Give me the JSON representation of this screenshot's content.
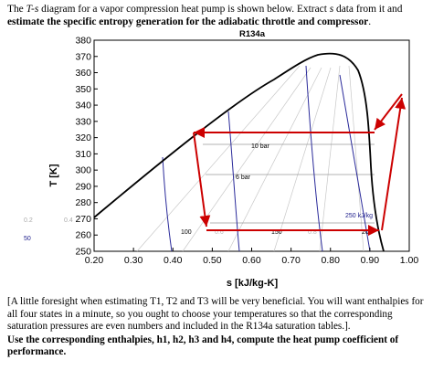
{
  "question": {
    "intro_before": "The ",
    "intro_italic": "T-s",
    "intro_mid": " diagram for a vapor compression heat pump is shown below.  Extract ",
    "intro_s": "s",
    "intro_after": " data from it and ",
    "intro_bold": "estimate the specific entropy generation for the adiabatic throttle and compressor",
    "intro_end": ".",
    "foresight": "[A little foresight when estimating T1, T2 and T3 will be very beneficial.  You will want enthalpies for all four states in a minute, so you ought to choose your temperatures so that the corresponding saturation pressures are even numbers and included in the R134a saturation tables.].",
    "final_bold": "Use the corresponding enthalpies, h1, h2, h3 and h4, compute the heat pump coefficient of performance."
  },
  "chart_data": {
    "type": "line",
    "title": "R134a",
    "xlabel": "s [kJ/kg-K]",
    "ylabel": "T [K]",
    "xlim": [
      0.2,
      1.0
    ],
    "ylim": [
      250,
      380
    ],
    "xticks": [
      "0.20",
      "0.30",
      "0.40",
      "0.50",
      "0.60",
      "0.70",
      "0.80",
      "0.90",
      "1.00"
    ],
    "yticks": [
      "250",
      "260",
      "270",
      "280",
      "290",
      "300",
      "310",
      "320",
      "330",
      "340",
      "350",
      "360",
      "370",
      "380"
    ],
    "grid": false,
    "saturation_dome": {
      "liquid_line": [
        [
          0.2,
          266
        ],
        [
          0.3,
          289
        ],
        [
          0.4,
          311
        ],
        [
          0.47,
          326
        ],
        [
          0.55,
          342
        ],
        [
          0.62,
          356
        ],
        [
          0.68,
          367
        ],
        [
          0.74,
          373
        ],
        [
          0.78,
          374
        ]
      ],
      "vapor_line": [
        [
          0.78,
          374
        ],
        [
          0.82,
          373
        ],
        [
          0.86,
          370
        ],
        [
          0.89,
          362
        ],
        [
          0.905,
          345
        ],
        [
          0.915,
          320
        ],
        [
          0.93,
          290
        ],
        [
          0.945,
          262
        ],
        [
          0.955,
          250
        ]
      ]
    },
    "isobars": [
      {
        "label": "10 bar",
        "T_sat": 313.1
      },
      {
        "label": "6 bar",
        "T_sat": 295
      }
    ],
    "isenthalps": [
      {
        "label": "100",
        "s_at_sat_bottom": 0.4
      },
      {
        "label": "150",
        "s_at_sat_bottom": 0.6
      },
      {
        "label": "200",
        "s_at_sat_bottom": 0.82
      },
      {
        "label": "250 kJ/kg",
        "s_at_sat_bottom": 0.94
      }
    ],
    "quality_labels": [
      "0.2",
      "0.4",
      "0.6",
      "0.8"
    ],
    "left_margin_label": "50",
    "cycle": {
      "color": "#cc0000",
      "path": [
        {
          "s": 0.935,
          "T": 326
        },
        {
          "s": 0.93,
          "T": 326
        },
        {
          "s": 0.46,
          "T": 326
        },
        {
          "s": 0.47,
          "T": 261
        },
        {
          "s": 0.92,
          "T": 261
        },
        {
          "s": 0.955,
          "T": 335
        }
      ]
    }
  }
}
